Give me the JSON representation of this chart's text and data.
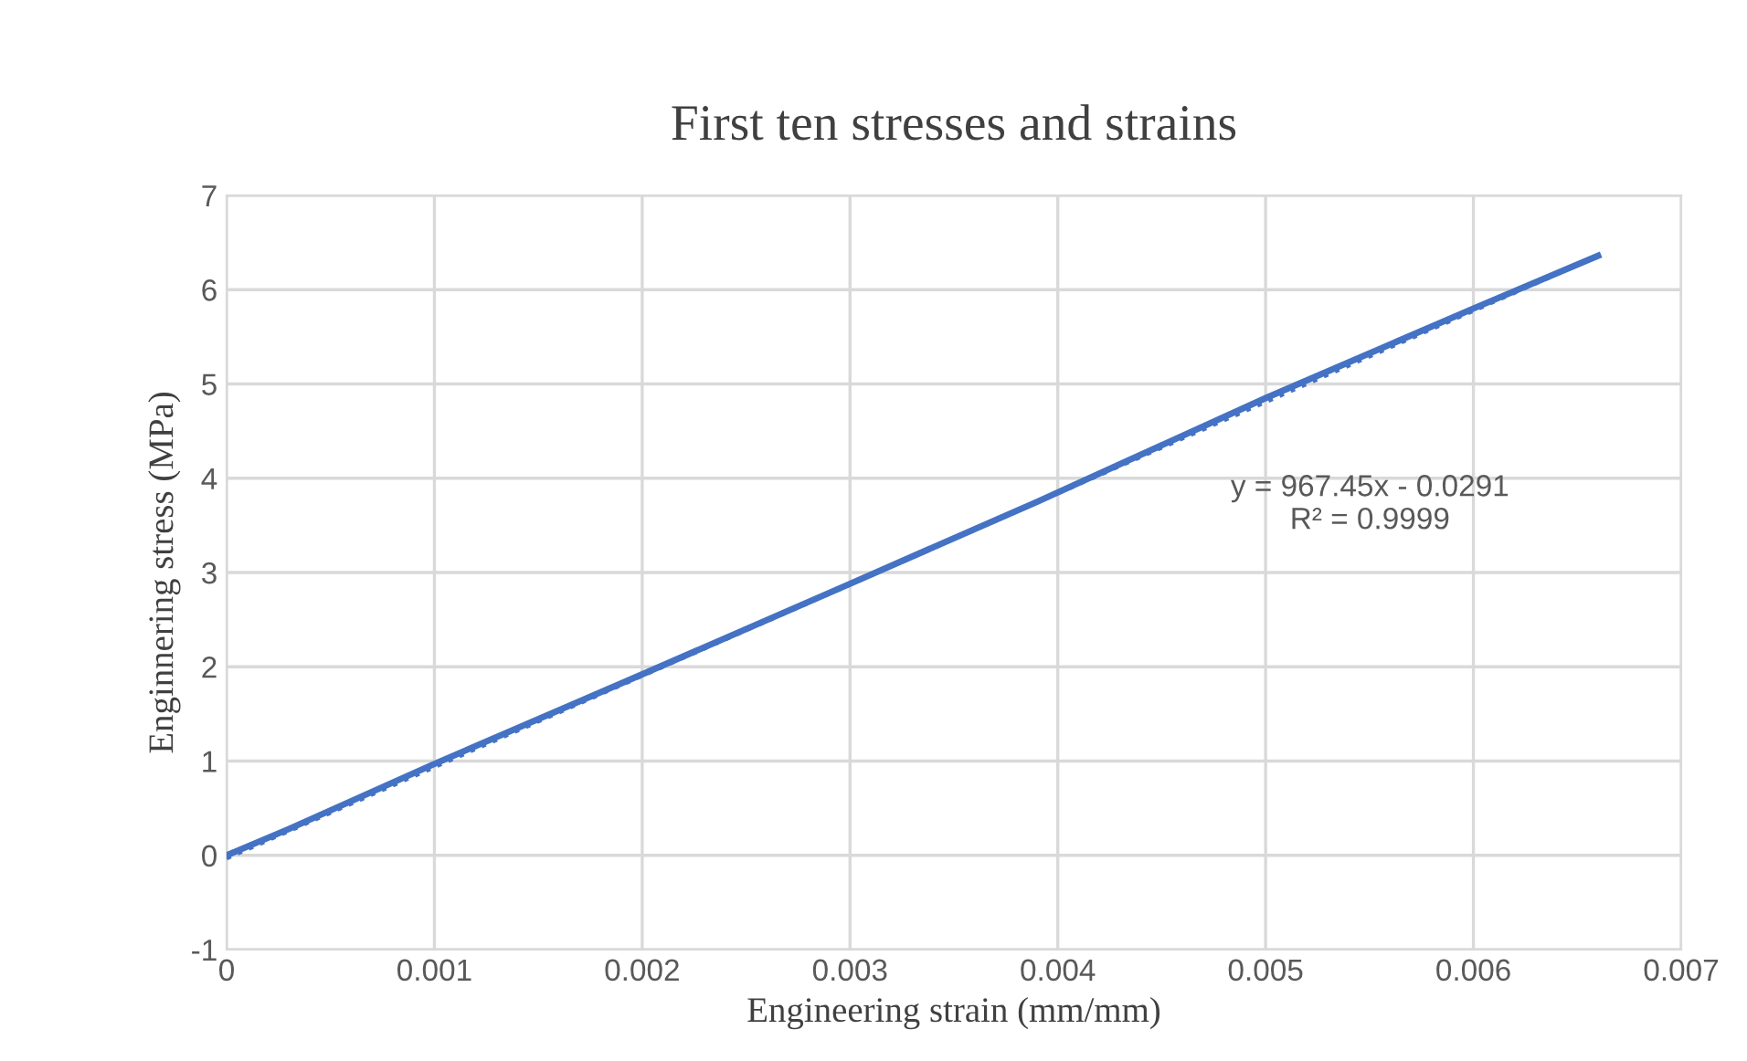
{
  "chart_data": {
    "type": "line",
    "title": "First ten stresses and strains",
    "xlabel": "Engineering strain (mm/mm)",
    "ylabel": "Enginnering stress (MPa)",
    "series": [
      {
        "color": "#4472c4",
        "x": [
          0,
          0.0003,
          0.001,
          0.002,
          0.003,
          0.0039,
          0.005,
          0.006,
          0.0066
        ],
        "values": [
          0,
          0.28,
          0.97,
          1.92,
          2.88,
          3.75,
          4.85,
          5.8,
          6.36
        ],
        "line_style": "solid"
      },
      {
        "type": "line",
        "color": "#4472c4",
        "x": [
          0,
          0.0066
        ],
        "values": [
          -0.03,
          6.36
        ],
        "line_style": "dotted"
      }
    ],
    "annotations": [
      "y = 967.45x - 0.0291\nR² = 0.9999"
    ],
    "xlim": [
      0,
      0.007
    ],
    "xticks": [
      0,
      0.001,
      0.002,
      0.003,
      0.004,
      0.005,
      0.006,
      0.007
    ],
    "ylim": [
      -1,
      7
    ],
    "yticks": [
      -1,
      0,
      1,
      2,
      3,
      4,
      5,
      6,
      7
    ],
    "grid": true,
    "legend": false,
    "marker": "none"
  }
}
